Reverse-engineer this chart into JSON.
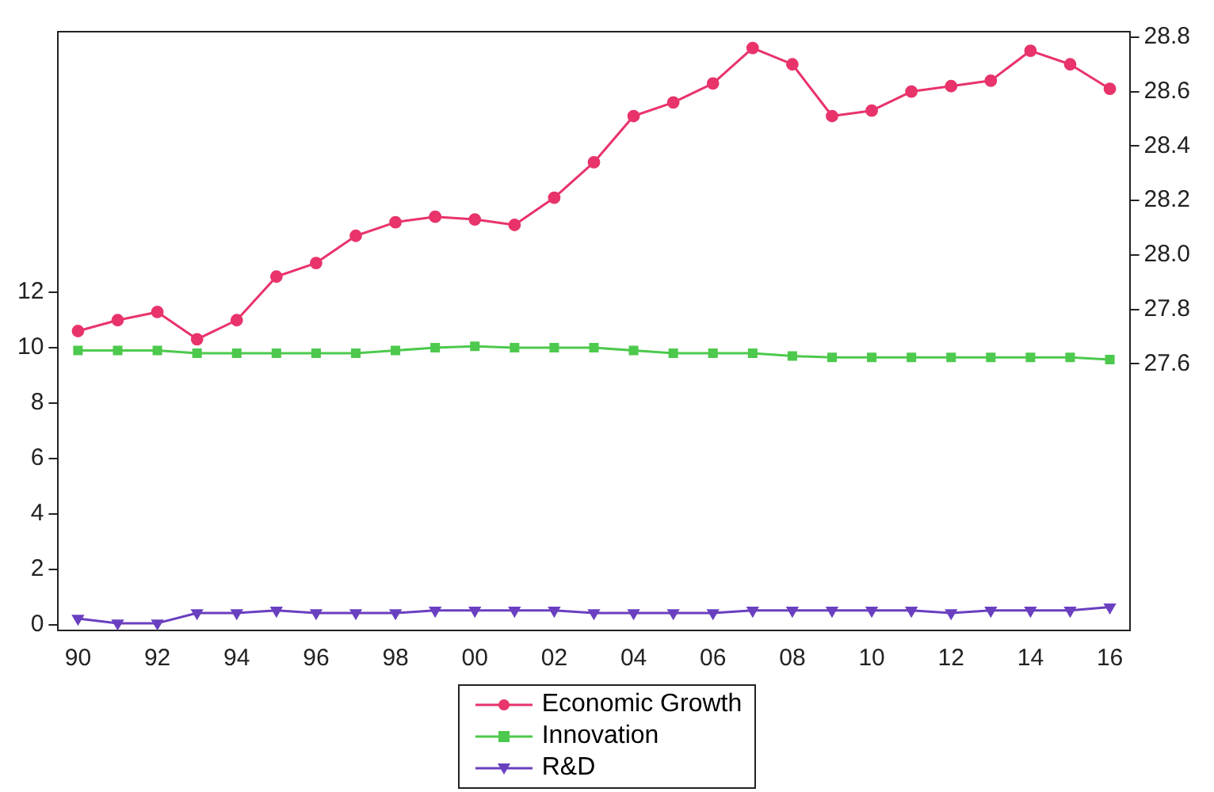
{
  "chart_data": {
    "type": "line",
    "categories": [
      "90",
      null,
      "92",
      null,
      "94",
      null,
      "96",
      null,
      "98",
      null,
      "00",
      null,
      "02",
      null,
      "04",
      null,
      "06",
      null,
      "08",
      null,
      "10",
      null,
      "12",
      null,
      "14",
      null,
      "16"
    ],
    "series": [
      {
        "name": "Economic Growth",
        "color": "#e8336b",
        "axis": "y2",
        "marker": "circle",
        "values": [
          27.72,
          27.76,
          27.79,
          27.69,
          27.76,
          27.92,
          27.97,
          28.07,
          28.12,
          28.14,
          28.13,
          28.11,
          28.21,
          28.34,
          28.51,
          28.56,
          28.63,
          28.76,
          28.7,
          28.51,
          28.53,
          28.6,
          28.62,
          28.64,
          28.75,
          28.7,
          28.61
        ]
      },
      {
        "name": "Innovation",
        "color": "#4dc94d",
        "marker": "square",
        "values": [
          9.9,
          9.9,
          9.9,
          9.8,
          9.8,
          9.8,
          9.8,
          9.8,
          9.9,
          10.0,
          10.05,
          10.0,
          10.0,
          10.0,
          9.9,
          9.8,
          9.8,
          9.8,
          9.7,
          9.65,
          9.65,
          9.65,
          9.65,
          9.65,
          9.65,
          9.65,
          9.57
        ]
      },
      {
        "name": "R&D",
        "color": "#6a3fc0",
        "marker": "triangle",
        "values": [
          0.23,
          0.06,
          0.06,
          0.43,
          0.43,
          0.52,
          0.43,
          0.43,
          0.43,
          0.52,
          0.52,
          0.52,
          0.52,
          0.43,
          0.43,
          0.43,
          0.43,
          0.52,
          0.52,
          0.52,
          0.52,
          0.52,
          0.43,
          0.52,
          0.52,
          0.52,
          0.64
        ]
      }
    ],
    "ylim": [
      -0.2,
      21.4
    ],
    "yticks": [
      0,
      2,
      4,
      6,
      8,
      10,
      12
    ],
    "y2lim": [
      26.62,
      28.82
    ],
    "y2ticks": [
      27.6,
      27.8,
      {
        "value": 28,
        "label": "28.0"
      },
      28.2,
      28.4,
      28.6,
      28.8
    ],
    "grid": false,
    "legend": "bottom"
  }
}
